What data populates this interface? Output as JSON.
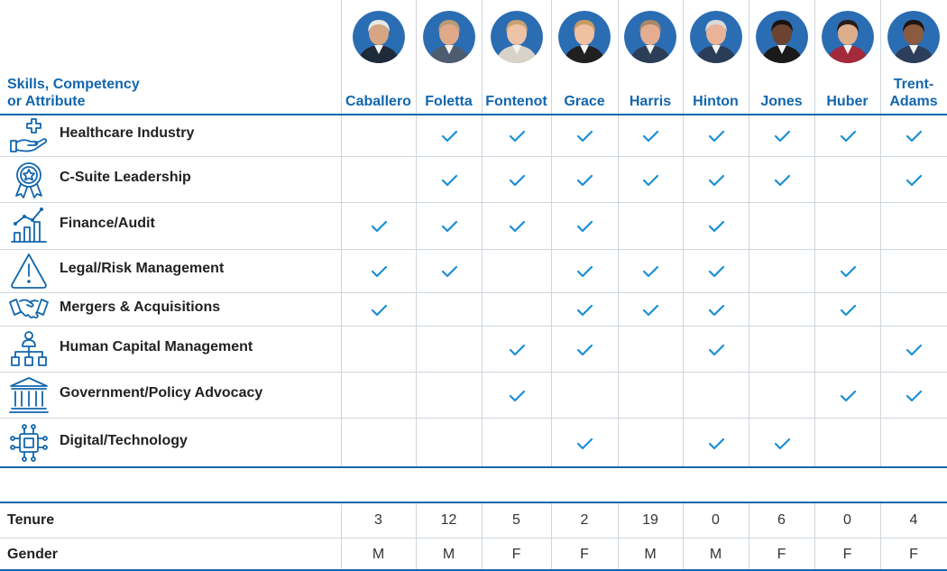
{
  "header": {
    "line1": "Skills, Competency",
    "line2": "or Attribute"
  },
  "directors": [
    {
      "name": "Caballero",
      "skin": "#d6a684",
      "hair": "#e8e8e8",
      "bg": "#2b6db3",
      "suit": "#1f2a3a"
    },
    {
      "name": "Foletta",
      "skin": "#e0a98a",
      "hair": "#b89a78",
      "bg": "#2b6db3",
      "suit": "#4d5c6e"
    },
    {
      "name": "Fontenot",
      "skin": "#edc3a6",
      "hair": "#caa173",
      "bg": "#2b6db3",
      "suit": "#d9d2c8"
    },
    {
      "name": "Grace",
      "skin": "#efc1a1",
      "hair": "#c89a63",
      "bg": "#2b6db3",
      "suit": "#202020"
    },
    {
      "name": "Harris",
      "skin": "#e4ad92",
      "hair": "#a88868",
      "bg": "#2b6db3",
      "suit": "#2c3e57"
    },
    {
      "name": "Hinton",
      "skin": "#e8b398",
      "hair": "#d9d9d9",
      "bg": "#2b6db3",
      "suit": "#2a3c58"
    },
    {
      "name": "Jones",
      "skin": "#6b4330",
      "hair": "#1b1210",
      "bg": "#2b6db3",
      "suit": "#1a1a1a"
    },
    {
      "name": "Huber",
      "skin": "#dcae8c",
      "hair": "#2a1d17",
      "bg": "#2b6db3",
      "suit": "#a22a3a"
    },
    {
      "name": "Trent-",
      "name2": "Adams",
      "skin": "#8b5a3f",
      "hair": "#1f1512",
      "bg": "#2b6db3",
      "suit": "#2d3e5a"
    }
  ],
  "skills": [
    {
      "label": "Healthcare Industry",
      "icon": "healthcare-hand-icon",
      "checks": [
        0,
        1,
        1,
        1,
        1,
        1,
        1,
        1,
        1
      ]
    },
    {
      "label": "C-Suite Leadership",
      "icon": "award-ribbon-icon",
      "checks": [
        0,
        1,
        1,
        1,
        1,
        1,
        1,
        0,
        1
      ]
    },
    {
      "label": "Finance/Audit",
      "icon": "bar-chart-icon",
      "checks": [
        1,
        1,
        1,
        1,
        0,
        1,
        0,
        0,
        0
      ]
    },
    {
      "label": "Legal/Risk Management",
      "icon": "warning-triangle-icon",
      "checks": [
        1,
        1,
        0,
        1,
        1,
        1,
        0,
        1,
        0
      ]
    },
    {
      "label": "Mergers & Acquisitions",
      "icon": "handshake-icon",
      "checks": [
        1,
        0,
        0,
        1,
        1,
        1,
        0,
        1,
        0
      ]
    },
    {
      "label": "Human Capital Management",
      "icon": "org-chart-icon",
      "checks": [
        0,
        0,
        1,
        1,
        0,
        1,
        0,
        0,
        1
      ]
    },
    {
      "label": "Government/Policy Advocacy",
      "icon": "government-building-icon",
      "checks": [
        0,
        0,
        1,
        0,
        0,
        0,
        0,
        1,
        1
      ]
    },
    {
      "label": "Digital/Technology",
      "icon": "chip-icon",
      "checks": [
        0,
        0,
        0,
        1,
        0,
        1,
        1,
        0,
        0
      ]
    }
  ],
  "tenure": {
    "label": "Tenure",
    "values": [
      "3",
      "12",
      "5",
      "2",
      "19",
      "0",
      "6",
      "0",
      "4"
    ]
  },
  "gender": {
    "label": "Gender",
    "values": [
      "M",
      "M",
      "F",
      "F",
      "M",
      "M",
      "F",
      "F",
      "F"
    ]
  },
  "colors": {
    "accent": "#1266ae",
    "check": "#1a8fd6",
    "rule": "#1266ae",
    "grid": "#cfd6dd"
  }
}
